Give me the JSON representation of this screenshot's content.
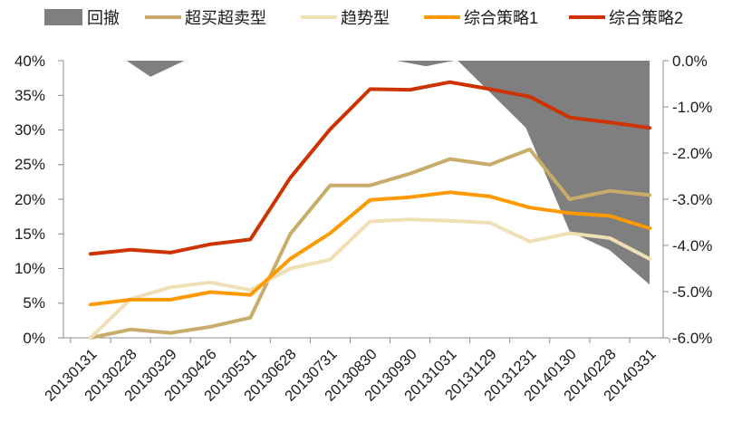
{
  "chart_data": {
    "type": "line",
    "title": "",
    "x": [
      "20130131",
      "20130228",
      "20130329",
      "20130426",
      "20130531",
      "20130628",
      "20130731",
      "20130830",
      "20130930",
      "20131031",
      "20131129",
      "20131231",
      "20140130",
      "20140228",
      "20140331"
    ],
    "y_left": {
      "ticks": [
        "40%",
        "35%",
        "30%",
        "25%",
        "20%",
        "15%",
        "10%",
        "5%",
        "0%"
      ],
      "range": [
        0,
        40
      ],
      "unit": "%"
    },
    "y_right": {
      "ticks": [
        "0.0%",
        "-1.0%",
        "-2.0%",
        "-3.0%",
        "-4.0%",
        "-5.0%",
        "-6.0%"
      ],
      "range": [
        -6,
        0
      ],
      "unit": "%"
    },
    "legend_position": "top",
    "drawdown": {
      "name": "回撤",
      "axis": "right",
      "color": "#7f7f7f",
      "x": [
        0,
        0.9,
        1.5,
        2.35,
        2.36,
        7.65,
        7.66,
        8.4,
        9.1,
        9.2,
        10.9,
        12.0,
        13.0,
        14.0
      ],
      "values": [
        0,
        0,
        -0.35,
        0,
        0,
        0,
        0,
        -0.12,
        0,
        0,
        -1.45,
        -3.7,
        -4.1,
        -4.85
      ]
    },
    "series": [
      {
        "name": "超买超卖型",
        "color": "#c8ad6a",
        "values": [
          0.0,
          1.2,
          0.7,
          1.6,
          2.9,
          15.0,
          22.0,
          22.0,
          23.7,
          25.8,
          25.0,
          27.2,
          20.0,
          21.2,
          20.6
        ]
      },
      {
        "name": "趋势型",
        "color": "#efdfb4",
        "values": [
          0.0,
          5.6,
          7.3,
          8.0,
          6.9,
          10.0,
          11.3,
          16.8,
          17.1,
          16.9,
          16.6,
          13.9,
          15.1,
          14.4,
          11.4
        ]
      },
      {
        "name": "综合策略1",
        "color": "#ff9900",
        "values": [
          4.8,
          5.5,
          5.5,
          6.6,
          6.2,
          11.4,
          15.1,
          19.9,
          20.3,
          21.0,
          20.4,
          18.8,
          18.0,
          17.6,
          15.8
        ]
      },
      {
        "name": "综合策略2",
        "color": "#cc3300",
        "values": [
          12.1,
          12.7,
          12.3,
          13.5,
          14.2,
          23.1,
          30.1,
          35.9,
          35.8,
          36.9,
          35.9,
          34.8,
          31.8,
          31.1,
          30.3
        ]
      }
    ]
  }
}
